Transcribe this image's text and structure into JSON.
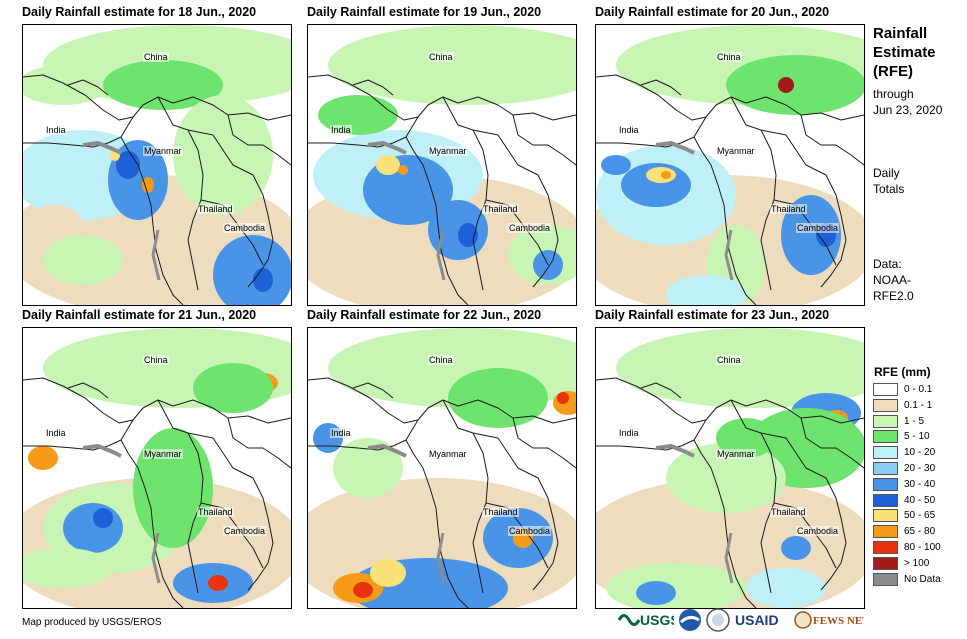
{
  "panels": [
    {
      "title": "Daily Rainfall estimate for 18 Jun., 2020",
      "labels": {
        "china": "China",
        "india": "India",
        "myanmar": "Myanmar",
        "thailand": "Thailand",
        "cambodia": "Cambodia"
      }
    },
    {
      "title": "Daily Rainfall estimate for 19 Jun., 2020",
      "labels": {
        "china": "China",
        "india": "India",
        "myanmar": "Myanmar",
        "thailand": "Thailand",
        "cambodia": "Cambodia"
      }
    },
    {
      "title": "Daily Rainfall estimate for 20 Jun., 2020",
      "labels": {
        "china": "China",
        "india": "India",
        "myanmar": "Myanmar",
        "thailand": "Thailand",
        "cambodia": "Cambodia"
      }
    },
    {
      "title": "Daily Rainfall estimate for 21 Jun., 2020",
      "labels": {
        "china": "China",
        "india": "India",
        "myanmar": "Myanmar",
        "thailand": "Thailand",
        "cambodia": "Cambodia"
      }
    },
    {
      "title": "Daily Rainfall estimate for 22 Jun., 2020",
      "labels": {
        "china": "China",
        "india": "India",
        "myanmar": "Myanmar",
        "thailand": "Thailand",
        "cambodia": "Cambodia"
      }
    },
    {
      "title": "Daily Rainfall estimate for 23 Jun., 2020",
      "labels": {
        "china": "China",
        "india": "India",
        "myanmar": "Myanmar",
        "thailand": "Thailand",
        "cambodia": "Cambodia"
      }
    }
  ],
  "sidebar": {
    "title_line1": "Rainfall",
    "title_line2": "Estimate",
    "title_line3": "(RFE)",
    "through_label": "through",
    "through_date": "Jun 23, 2020",
    "daily_line1": "Daily",
    "daily_line2": "Totals",
    "data_line1": "Data:",
    "data_line2": "NOAA-",
    "data_line3": "RFE2.0"
  },
  "legend": {
    "title": "RFE (mm)",
    "items": [
      {
        "label": "0 - 0.1",
        "color": "#ffffff"
      },
      {
        "label": "0.1 - 1",
        "color": "#eedcbf"
      },
      {
        "label": "1 - 5",
        "color": "#c8f5b4"
      },
      {
        "label": "5 - 10",
        "color": "#6ee46e"
      },
      {
        "label": "10 - 20",
        "color": "#bff0f8"
      },
      {
        "label": "20 - 30",
        "color": "#8ccbf2"
      },
      {
        "label": "30 - 40",
        "color": "#4a94e8"
      },
      {
        "label": "40 - 50",
        "color": "#1f5fd8"
      },
      {
        "label": "50 - 65",
        "color": "#fae17a"
      },
      {
        "label": "65 - 80",
        "color": "#f59b18"
      },
      {
        "label": "80 - 100",
        "color": "#e8330e"
      },
      {
        "label": "> 100",
        "color": "#a31b1b"
      },
      {
        "label": "No Data",
        "color": "#8c8c8c"
      }
    ]
  },
  "footer": {
    "credit": "Map produced by USGS/EROS",
    "logos": {
      "usgs": "USGS",
      "usaid": "USAID",
      "fewsnet": "FEWS NET"
    }
  },
  "colors": {
    "land_light": "#c8f5b4",
    "green": "#6ee46e",
    "cyan": "#bff0f8",
    "blue_light": "#8ccbf2",
    "blue": "#4a94e8",
    "blue_dark": "#1f5fd8",
    "yellow": "#fae17a",
    "orange": "#f59b18",
    "red": "#e8330e",
    "darkred": "#a31b1b",
    "tan": "#eedcbf",
    "nodata": "#8c8c8c"
  }
}
